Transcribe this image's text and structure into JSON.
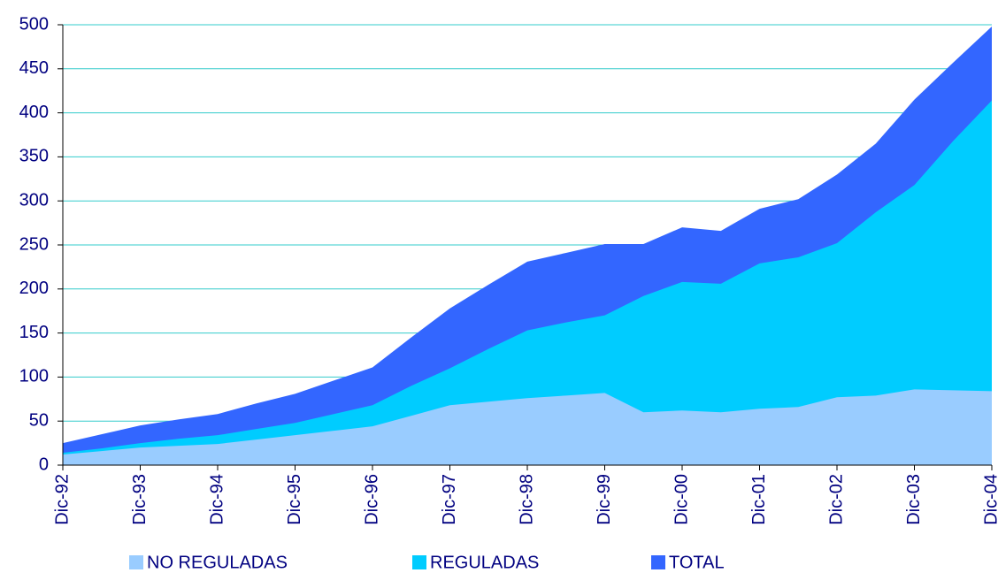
{
  "chart_data": {
    "type": "area",
    "categories": [
      "Dic-92",
      null,
      "Dic-93",
      null,
      "Dic-94",
      null,
      "Dic-95",
      null,
      "Dic-96",
      null,
      "Dic-97",
      null,
      "Dic-98",
      null,
      "Dic-99",
      null,
      "Dic-00",
      null,
      "Dic-01",
      null,
      "Dic-02",
      null,
      "Dic-03",
      null,
      "Dic-04"
    ],
    "series": [
      {
        "name": "TOTAL",
        "color": "#3366ff",
        "values": [
          25,
          35,
          45,
          52,
          58,
          70,
          81,
          96,
          111,
          145,
          178,
          205,
          231,
          241,
          251,
          251,
          270,
          266,
          291,
          302,
          330,
          365,
          415,
          457,
          498
        ]
      },
      {
        "name": "REGULADAS",
        "color": "#00ccff",
        "values": [
          14,
          19,
          25,
          30,
          34,
          41,
          48,
          58,
          68,
          90,
          110,
          132,
          153,
          162,
          170,
          192,
          208,
          206,
          229,
          236,
          252,
          287,
          318,
          368,
          414
        ]
      },
      {
        "name": "NO REGULADAS",
        "color": "#99ccff",
        "values": [
          12,
          16,
          20,
          22,
          24,
          29,
          34,
          39,
          44,
          56,
          68,
          72,
          76,
          79,
          82,
          60,
          62,
          60,
          64,
          66,
          77,
          79,
          86,
          85,
          84
        ]
      }
    ],
    "ylim": [
      0,
      500
    ],
    "yticks": [
      0,
      50,
      100,
      150,
      200,
      250,
      300,
      350,
      400,
      450,
      500
    ],
    "grid": true
  }
}
